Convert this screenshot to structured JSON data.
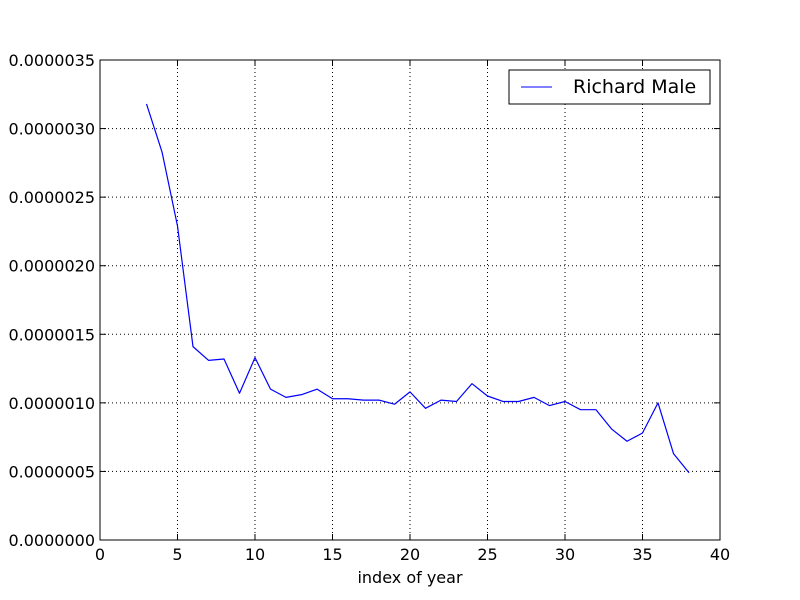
{
  "chart_data": {
    "type": "line",
    "title": "",
    "xlabel": "index of year",
    "ylabel": "",
    "xlim": [
      0,
      40
    ],
    "ylim": [
      0,
      3.5e-06
    ],
    "grid": true,
    "legend_position": "top-right",
    "x_ticks": [
      "0",
      "5",
      "10",
      "15",
      "20",
      "25",
      "30",
      "35",
      "40"
    ],
    "y_ticks": [
      "0.0000000",
      "0.0000005",
      "0.0000010",
      "0.0000015",
      "0.0000020",
      "0.0000025",
      "0.0000030",
      "0.0000035"
    ],
    "series": [
      {
        "name": "Richard Male",
        "color": "#0000ff",
        "x": [
          3,
          4,
          5,
          6,
          7,
          8,
          9,
          10,
          11,
          12,
          13,
          14,
          15,
          16,
          17,
          18,
          19,
          20,
          21,
          22,
          23,
          24,
          25,
          26,
          27,
          28,
          29,
          30,
          31,
          32,
          33,
          34,
          35,
          36,
          37,
          38
        ],
        "y": [
          3.18e-06,
          2.83e-06,
          2.29e-06,
          1.41e-06,
          1.31e-06,
          1.32e-06,
          1.07e-06,
          1.33e-06,
          1.1e-06,
          1.04e-06,
          1.06e-06,
          1.1e-06,
          1.03e-06,
          1.03e-06,
          1.02e-06,
          1.02e-06,
          9.9e-07,
          1.08e-06,
          9.6e-07,
          1.02e-06,
          1.01e-06,
          1.14e-06,
          1.05e-06,
          1.01e-06,
          1.01e-06,
          1.04e-06,
          9.8e-07,
          1.01e-06,
          9.5e-07,
          9.5e-07,
          8.1e-07,
          7.2e-07,
          7.8e-07,
          1e-06,
          6.3e-07,
          4.9e-07
        ]
      }
    ]
  }
}
